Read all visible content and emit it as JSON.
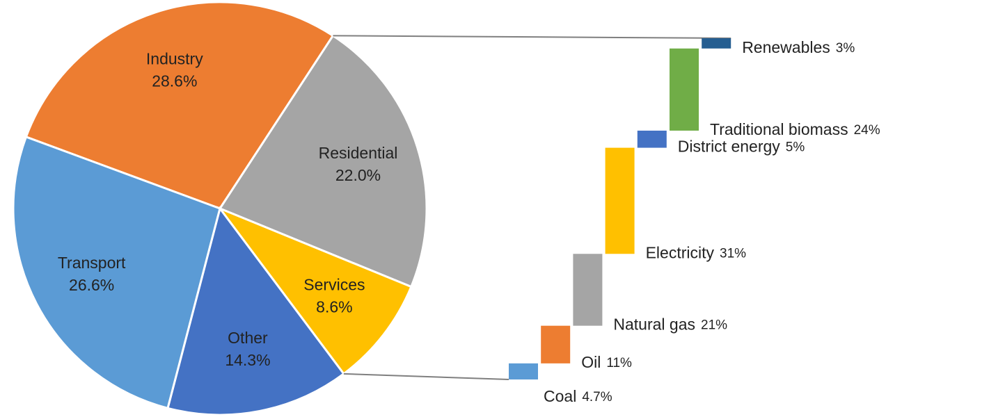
{
  "chart_data": [
    {
      "type": "pie",
      "categories": [
        "Industry",
        "Residential",
        "Services",
        "Other",
        "Transport"
      ],
      "values": [
        28.6,
        22.0,
        8.6,
        14.3,
        26.6
      ],
      "value_labels": [
        "28.6%",
        "22.0%",
        "8.6%",
        "14.3%",
        "26.6%"
      ],
      "colors": [
        "#ED7D31",
        "#A5A5A5",
        "#FFC000",
        "#4472C4",
        "#5B9BD5"
      ]
    },
    {
      "type": "waterfall",
      "categories": [
        "Coal",
        "Oil",
        "Natural gas",
        "Electricity",
        "District energy",
        "Traditional biomass",
        "Renewables"
      ],
      "values": [
        4.7,
        11,
        21,
        31,
        5,
        24,
        3
      ],
      "value_labels": [
        "4.7%",
        "11%",
        "21%",
        "31%",
        "5%",
        "24%",
        "3%"
      ],
      "colors": [
        "#5B9BD5",
        "#ED7D31",
        "#A5A5A5",
        "#FFC000",
        "#4472C4",
        "#70AD47",
        "#255E91"
      ]
    }
  ]
}
